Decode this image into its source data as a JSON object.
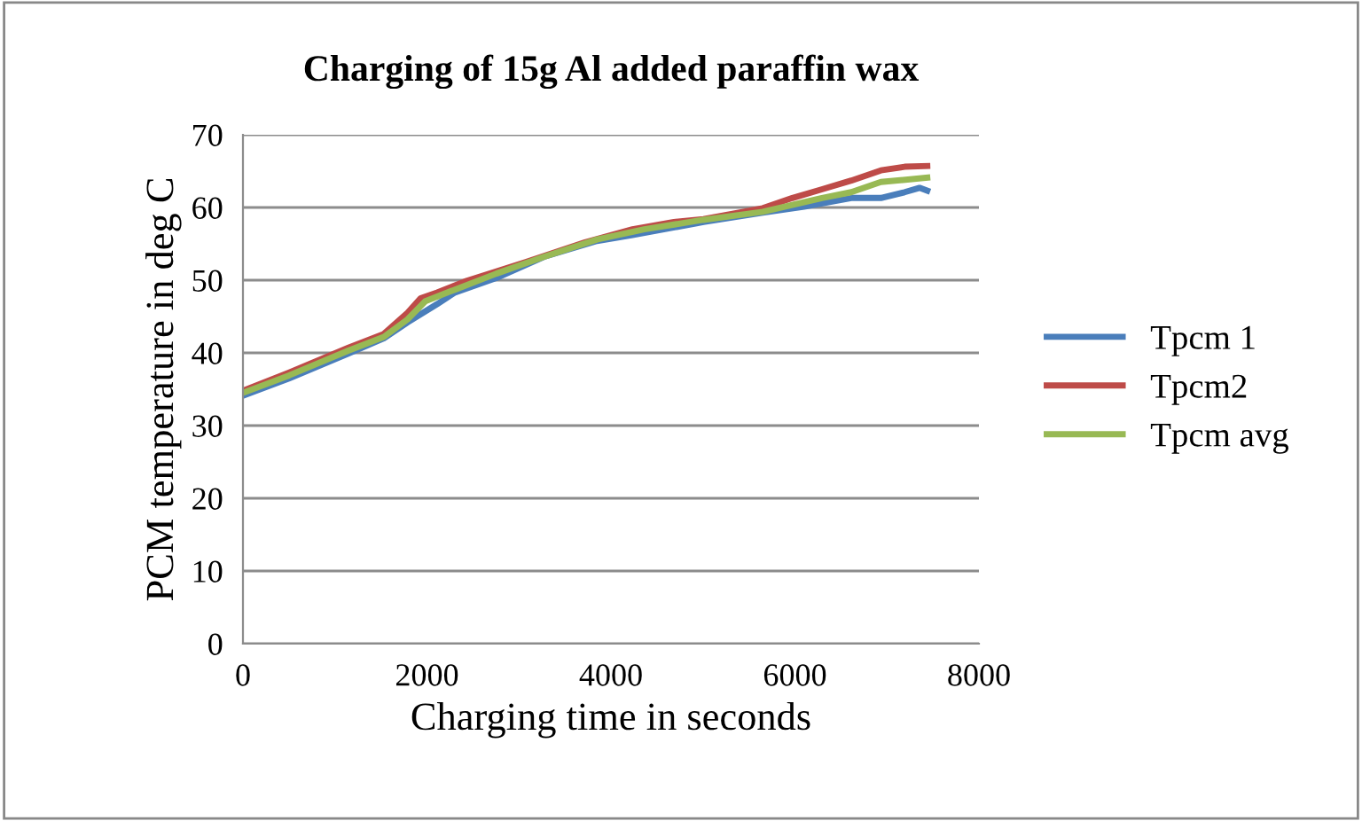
{
  "chart_data": {
    "type": "line",
    "title": "Charging of 15g Al added paraffin wax",
    "xlabel": "Charging time in seconds",
    "ylabel": "PCM temperature in deg C",
    "xlim": [
      0,
      8000
    ],
    "xticks": [
      0,
      2000,
      4000,
      6000,
      8000
    ],
    "ylim": [
      0,
      70
    ],
    "yticks": [
      0,
      10,
      20,
      30,
      40,
      50,
      60,
      70
    ],
    "grid": "y",
    "legend": "right",
    "marker": "none",
    "line_style": "solid",
    "series": [
      {
        "name": "Tpcm 1",
        "color": "#4a7ebb",
        "x": [
          0,
          502,
          1145,
          1531,
          1789,
          2110,
          2304,
          2754,
          3269,
          3848,
          4234,
          5006,
          5650,
          6100,
          6612,
          6934,
          7192,
          7354,
          7438
        ],
        "values": [
          34.1,
          36.5,
          39.9,
          42.0,
          44.2,
          46.7,
          48.3,
          50.3,
          53.2,
          55.4,
          56.2,
          58.0,
          59.3,
          60.1,
          61.3,
          61.3,
          62.1,
          62.7,
          62.3
        ]
      },
      {
        "name": "Tpcm2",
        "color": "#be4b48",
        "x": [
          0,
          502,
          1145,
          1531,
          1789,
          1930,
          2110,
          2432,
          3076,
          3719,
          4234,
          4684,
          5006,
          5650,
          5972,
          6294,
          6612,
          6934,
          7192,
          7438
        ],
        "values": [
          34.8,
          37.3,
          40.7,
          42.6,
          45.5,
          47.5,
          48.3,
          49.9,
          52.5,
          55.2,
          57.0,
          58.0,
          58.4,
          59.9,
          61.3,
          62.5,
          63.7,
          65.1,
          65.6,
          65.7
        ]
      },
      {
        "name": "Tpcm avg",
        "color": "#98b954",
        "x": [
          0,
          502,
          1145,
          1531,
          1789,
          1982,
          2304,
          2754,
          3269,
          3848,
          4362,
          5006,
          5650,
          6294,
          6612,
          6934,
          7438
        ],
        "values": [
          34.5,
          36.9,
          40.3,
          42.2,
          44.6,
          47.1,
          48.7,
          50.9,
          53.2,
          55.6,
          57.0,
          58.3,
          59.4,
          61.3,
          62.1,
          63.5,
          64.1
        ]
      }
    ]
  }
}
